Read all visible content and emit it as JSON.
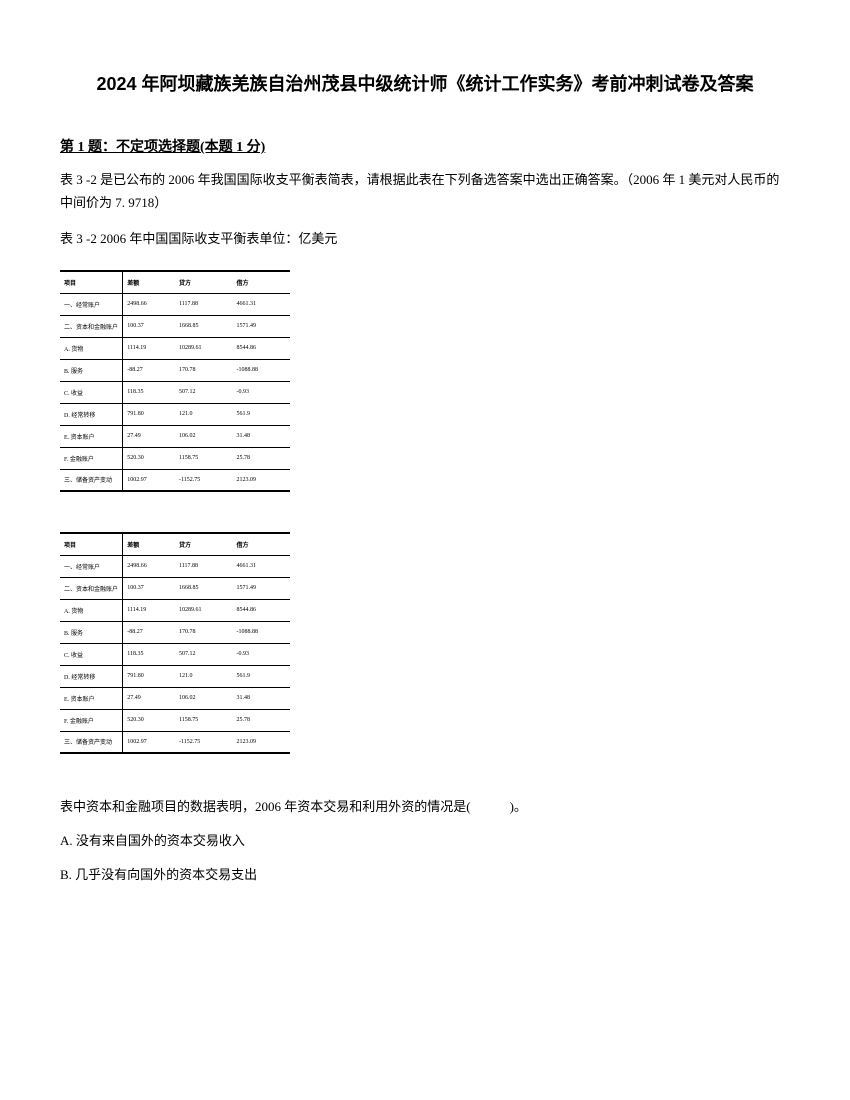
{
  "title": "2024 年阿坝藏族羌族自治州茂县中级统计师《统计工作实务》考前冲刺试卷及答案",
  "question": {
    "header": "第 1 题：不定项选择题(本题 1 分)",
    "text": "表 3 -2 是已公布的 2006 年我国国际收支平衡表简表，请根据此表在下列备选答案中选出正确答案。（2006 年 1 美元对人民币的中间价为 7. 9718）",
    "caption": "表 3 -2 2006 年中国国际收支平衡表单位：亿美元"
  },
  "table": {
    "headers": [
      "项目",
      "差额",
      "贷方",
      "借方"
    ],
    "rows": [
      [
        "一、经常账户",
        "2498.66",
        "1117.88",
        "4661.31"
      ],
      [
        "二、资本和金融账户",
        "100.37",
        "1668.85",
        "1571.49"
      ],
      [
        "A. 货物",
        "1114.19",
        "10289.61",
        "8544.86"
      ],
      [
        "B. 服务",
        "-88.27",
        "170.78",
        "-1088.88"
      ],
      [
        "C. 收益",
        "118.35",
        "507.12",
        "-0.93"
      ],
      [
        "D. 经常转移",
        "791.80",
        "121.0",
        "561.9"
      ],
      [
        "E. 资本账户",
        "27.49",
        "106.02",
        "31.48"
      ],
      [
        "F. 金融账户",
        "520.30",
        "1158.75",
        "25.78"
      ],
      [
        "三、储备资产变动",
        "1002.97",
        "-1152.75",
        "2123.09"
      ]
    ]
  },
  "answers": {
    "prompt": "表中资本和金融项目的数据表明，2006 年资本交易和利用外资的情况是(　　　)。",
    "optionA": "A. 没有来自国外的资本交易收入",
    "optionB": "B. 几乎没有向国外的资本交易支出"
  }
}
